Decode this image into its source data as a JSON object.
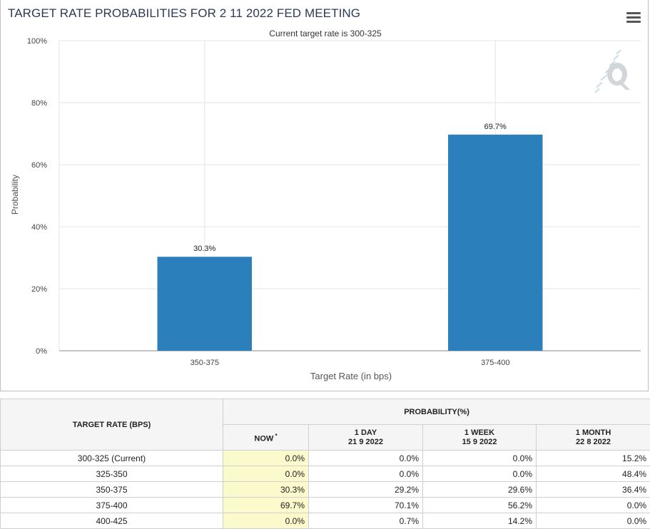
{
  "chart_data": {
    "type": "bar",
    "title": "TARGET RATE PROBABILITIES FOR 2 11 2022 FED MEETING",
    "subtitle": "Current target rate is 300-325",
    "xlabel": "Target Rate (in bps)",
    "ylabel": "Probability",
    "categories": [
      "350-375",
      "375-400"
    ],
    "values": [
      30.3,
      69.7
    ],
    "data_labels": [
      "30.3%",
      "69.7%"
    ],
    "ylim": [
      0,
      100
    ],
    "yticks": [
      0,
      20,
      40,
      60,
      80,
      100
    ],
    "ytick_labels": [
      "0%",
      "20%",
      "40%",
      "60%",
      "80%",
      "100%"
    ],
    "grid": true,
    "bar_color": "#2b7fba"
  },
  "table": {
    "col_target": "TARGET RATE (BPS)",
    "col_probability": "PROBABILITY(%)",
    "subcols": [
      {
        "line1": "NOW",
        "line2": "",
        "sup": "*"
      },
      {
        "line1": "1 DAY",
        "line2": "21 9 2022",
        "sup": ""
      },
      {
        "line1": "1 WEEK",
        "line2": "15 9 2022",
        "sup": ""
      },
      {
        "line1": "1 MONTH",
        "line2": "22 8 2022",
        "sup": ""
      }
    ],
    "rows": [
      {
        "rate": "300-325 (Current)",
        "now": "0.0%",
        "day": "0.0%",
        "week": "0.0%",
        "month": "15.2%"
      },
      {
        "rate": "325-350",
        "now": "0.0%",
        "day": "0.0%",
        "week": "0.0%",
        "month": "48.4%"
      },
      {
        "rate": "350-375",
        "now": "30.3%",
        "day": "29.2%",
        "week": "29.6%",
        "month": "36.4%"
      },
      {
        "rate": "375-400",
        "now": "69.7%",
        "day": "70.1%",
        "week": "56.2%",
        "month": "0.0%"
      },
      {
        "rate": "400-425",
        "now": "0.0%",
        "day": "0.7%",
        "week": "14.2%",
        "month": "0.0%"
      }
    ]
  },
  "icons": {
    "menu": "hamburger-menu-icon",
    "watermark": "q-logo-icon"
  }
}
